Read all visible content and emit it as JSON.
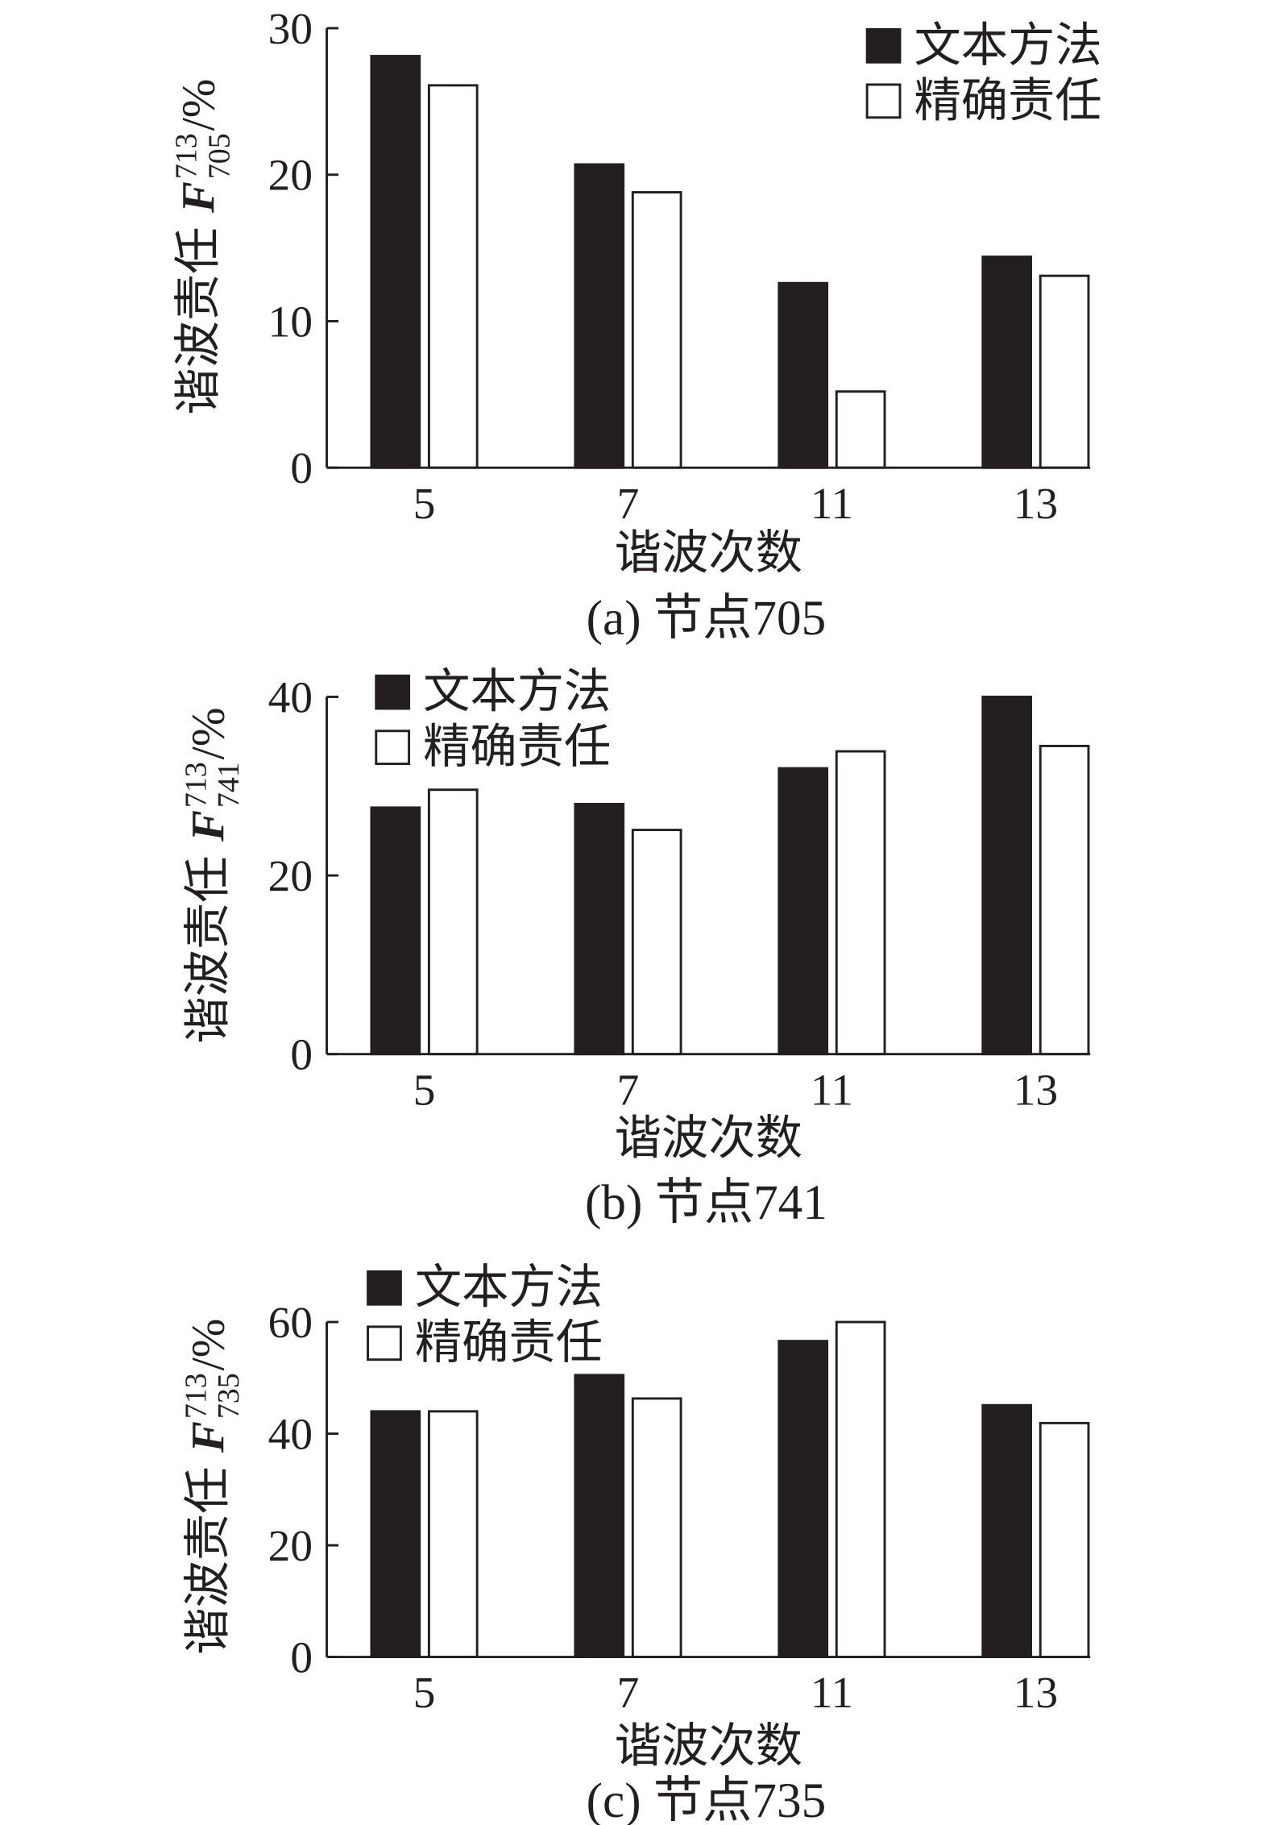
{
  "style": {
    "bar_dark": "#231f20",
    "bar_light": "#ffffff",
    "stroke": "#231f20",
    "background": "#ffffff"
  },
  "chart_data": [
    {
      "type": "bar",
      "caption": "(a) 节点705",
      "categories": [
        "5",
        "7",
        "11",
        "13"
      ],
      "series": [
        {
          "name": "文本方法",
          "color": "#231f20",
          "values": [
            28.1,
            20.7,
            12.6,
            14.4
          ]
        },
        {
          "name": "精确责任",
          "color": "#ffffff",
          "values": [
            26.1,
            18.8,
            5.2,
            13.1
          ]
        }
      ],
      "xlabel": "谐波次数",
      "ylabel": {
        "prefix": "谐波责任",
        "variable": "F",
        "superscript": "713",
        "subscript": "705",
        "suffix": "/%"
      },
      "ylim": [
        0,
        30
      ],
      "yticks": [
        0,
        10,
        20,
        30
      ],
      "legend_position": "top-right",
      "grid": false
    },
    {
      "type": "bar",
      "caption": "(b) 节点741",
      "categories": [
        "5",
        "7",
        "11",
        "13"
      ],
      "series": [
        {
          "name": "文本方法",
          "color": "#231f20",
          "values": [
            27.6,
            28.0,
            32.0,
            40.0
          ]
        },
        {
          "name": "精确责任",
          "color": "#ffffff",
          "values": [
            29.6,
            25.1,
            33.9,
            34.5
          ]
        }
      ],
      "xlabel": "谐波次数",
      "ylabel": {
        "prefix": "谐波责任",
        "variable": "F",
        "superscript": "713",
        "subscript": "741",
        "suffix": "/%"
      },
      "ylim": [
        0,
        40
      ],
      "yticks": [
        0,
        20,
        40
      ],
      "legend_position": "top-left",
      "grid": false
    },
    {
      "type": "bar",
      "caption": "(c) 节点735",
      "categories": [
        "5",
        "7",
        "11",
        "13"
      ],
      "series": [
        {
          "name": "文本方法",
          "color": "#231f20",
          "values": [
            44.0,
            50.5,
            56.6,
            45.1
          ]
        },
        {
          "name": "精确责任",
          "color": "#ffffff",
          "values": [
            44.0,
            46.3,
            60.0,
            41.9
          ]
        }
      ],
      "xlabel": "谐波次数",
      "ylabel": {
        "prefix": "谐波责任",
        "variable": "F",
        "superscript": "713",
        "subscript": "735",
        "suffix": "/%"
      },
      "ylim": [
        0,
        60
      ],
      "yticks": [
        0,
        20,
        40,
        60
      ],
      "legend_position": "top-left",
      "grid": false
    }
  ]
}
